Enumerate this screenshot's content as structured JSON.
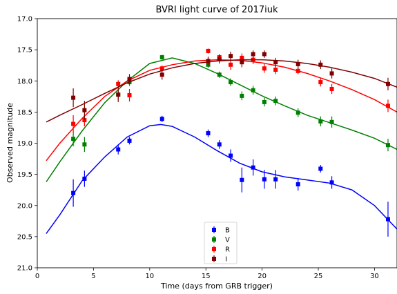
{
  "chart_data": {
    "type": "scatter",
    "title": "BVRI light curve of 2017iuk",
    "xlabel": "Time (days from GRB trigger)",
    "ylabel": "Observed magnitude",
    "xlim": [
      0,
      32
    ],
    "ylim": [
      17.0,
      21.0
    ],
    "y_inverted": true,
    "xticks": [
      "0",
      "5",
      "10",
      "15",
      "20",
      "25",
      "30"
    ],
    "yticks": [
      "17.0",
      "17.5",
      "18.0",
      "18.5",
      "19.0",
      "19.5",
      "20.0",
      "20.5",
      "21.0"
    ],
    "grid": false,
    "legend_position": "lower-center",
    "series": [
      {
        "name": "B",
        "color": "#0000ff",
        "points": [
          {
            "x": 3.2,
            "y": 19.8,
            "err": 0.22
          },
          {
            "x": 4.2,
            "y": 19.57,
            "err": 0.13
          },
          {
            "x": 7.2,
            "y": 19.1,
            "err": 0.08
          },
          {
            "x": 8.2,
            "y": 18.96,
            "err": 0.06
          },
          {
            "x": 11.1,
            "y": 18.61,
            "err": 0.05
          },
          {
            "x": 15.2,
            "y": 18.84,
            "err": 0.06
          },
          {
            "x": 16.2,
            "y": 19.02,
            "err": 0.07
          },
          {
            "x": 17.2,
            "y": 19.2,
            "err": 0.1
          },
          {
            "x": 18.2,
            "y": 19.59,
            "err": 0.2
          },
          {
            "x": 19.2,
            "y": 19.39,
            "err": 0.13
          },
          {
            "x": 20.2,
            "y": 19.58,
            "err": 0.15
          },
          {
            "x": 21.2,
            "y": 19.58,
            "err": 0.15
          },
          {
            "x": 23.2,
            "y": 19.66,
            "err": 0.1
          },
          {
            "x": 25.2,
            "y": 19.41,
            "err": 0.06
          },
          {
            "x": 26.2,
            "y": 19.63,
            "err": 0.1
          },
          {
            "x": 31.2,
            "y": 20.22,
            "err": 0.28
          }
        ],
        "curve": [
          [
            0.8,
            20.45
          ],
          [
            2,
            20.15
          ],
          [
            4,
            19.6
          ],
          [
            6,
            19.22
          ],
          [
            8,
            18.9
          ],
          [
            10,
            18.72
          ],
          [
            11,
            18.7
          ],
          [
            12,
            18.73
          ],
          [
            14,
            18.9
          ],
          [
            16,
            19.12
          ],
          [
            18,
            19.32
          ],
          [
            20,
            19.46
          ],
          [
            22,
            19.54
          ],
          [
            24,
            19.59
          ],
          [
            26,
            19.64
          ],
          [
            28,
            19.75
          ],
          [
            30,
            20.0
          ],
          [
            32,
            20.38
          ]
        ]
      },
      {
        "name": "V",
        "color": "#008000",
        "points": [
          {
            "x": 3.2,
            "y": 18.93,
            "err": 0.12
          },
          {
            "x": 4.2,
            "y": 19.02,
            "err": 0.12
          },
          {
            "x": 7.2,
            "y": 18.22,
            "err": 0.08
          },
          {
            "x": 8.2,
            "y": 18.02,
            "err": 0.06
          },
          {
            "x": 11.1,
            "y": 17.62,
            "err": 0.04
          },
          {
            "x": 15.2,
            "y": 17.74,
            "err": 0.05
          },
          {
            "x": 16.2,
            "y": 17.9,
            "err": 0.05
          },
          {
            "x": 17.2,
            "y": 18.02,
            "err": 0.06
          },
          {
            "x": 18.2,
            "y": 18.24,
            "err": 0.07
          },
          {
            "x": 19.2,
            "y": 18.15,
            "err": 0.07
          },
          {
            "x": 20.2,
            "y": 18.34,
            "err": 0.07
          },
          {
            "x": 21.2,
            "y": 18.32,
            "err": 0.07
          },
          {
            "x": 23.2,
            "y": 18.51,
            "err": 0.07
          },
          {
            "x": 25.2,
            "y": 18.65,
            "err": 0.08
          },
          {
            "x": 26.2,
            "y": 18.66,
            "err": 0.09
          },
          {
            "x": 31.2,
            "y": 19.03,
            "err": 0.1
          }
        ],
        "curve": [
          [
            0.8,
            19.62
          ],
          [
            2,
            19.3
          ],
          [
            4,
            18.8
          ],
          [
            6,
            18.35
          ],
          [
            8,
            18.0
          ],
          [
            10,
            17.72
          ],
          [
            12,
            17.63
          ],
          [
            14,
            17.72
          ],
          [
            16,
            17.88
          ],
          [
            18,
            18.06
          ],
          [
            20,
            18.24
          ],
          [
            22,
            18.4
          ],
          [
            24,
            18.55
          ],
          [
            26,
            18.67
          ],
          [
            28,
            18.79
          ],
          [
            30,
            18.92
          ],
          [
            32,
            19.1
          ]
        ]
      },
      {
        "name": "R",
        "color": "#ff0000",
        "points": [
          {
            "x": 3.2,
            "y": 18.69,
            "err": 0.14
          },
          {
            "x": 4.2,
            "y": 18.63,
            "err": 0.1
          },
          {
            "x": 7.2,
            "y": 18.05,
            "err": 0.06
          },
          {
            "x": 8.2,
            "y": 18.23,
            "err": 0.1
          },
          {
            "x": 11.1,
            "y": 17.8,
            "err": 0.05
          },
          {
            "x": 15.2,
            "y": 17.52,
            "err": 0.04
          },
          {
            "x": 16.2,
            "y": 17.62,
            "err": 0.05
          },
          {
            "x": 17.2,
            "y": 17.74,
            "err": 0.08
          },
          {
            "x": 18.2,
            "y": 17.63,
            "err": 0.07
          },
          {
            "x": 19.2,
            "y": 17.66,
            "err": 0.07
          },
          {
            "x": 20.2,
            "y": 17.8,
            "err": 0.07
          },
          {
            "x": 21.2,
            "y": 17.82,
            "err": 0.07
          },
          {
            "x": 23.2,
            "y": 17.84,
            "err": 0.05
          },
          {
            "x": 25.2,
            "y": 18.02,
            "err": 0.07
          },
          {
            "x": 26.2,
            "y": 18.13,
            "err": 0.08
          },
          {
            "x": 31.2,
            "y": 18.4,
            "err": 0.1
          }
        ],
        "curve": [
          [
            0.8,
            19.28
          ],
          [
            2,
            19.0
          ],
          [
            4,
            18.6
          ],
          [
            6,
            18.25
          ],
          [
            8,
            18.0
          ],
          [
            10,
            17.83
          ],
          [
            12,
            17.74
          ],
          [
            14,
            17.68
          ],
          [
            16,
            17.66
          ],
          [
            18,
            17.67
          ],
          [
            20,
            17.71
          ],
          [
            22,
            17.78
          ],
          [
            24,
            17.88
          ],
          [
            26,
            18.0
          ],
          [
            28,
            18.14
          ],
          [
            30,
            18.3
          ],
          [
            32,
            18.5
          ]
        ]
      },
      {
        "name": "I",
        "color": "#800000",
        "points": [
          {
            "x": 3.2,
            "y": 18.27,
            "err": 0.15
          },
          {
            "x": 4.2,
            "y": 18.47,
            "err": 0.15
          },
          {
            "x": 7.2,
            "y": 18.22,
            "err": 0.12
          },
          {
            "x": 8.2,
            "y": 17.97,
            "err": 0.08
          },
          {
            "x": 11.1,
            "y": 17.9,
            "err": 0.08
          },
          {
            "x": 15.2,
            "y": 17.68,
            "err": 0.07
          },
          {
            "x": 16.2,
            "y": 17.65,
            "err": 0.07
          },
          {
            "x": 17.2,
            "y": 17.6,
            "err": 0.07
          },
          {
            "x": 18.2,
            "y": 17.7,
            "err": 0.08
          },
          {
            "x": 19.2,
            "y": 17.57,
            "err": 0.06
          },
          {
            "x": 20.2,
            "y": 17.57,
            "err": 0.06
          },
          {
            "x": 21.2,
            "y": 17.7,
            "err": 0.07
          },
          {
            "x": 23.2,
            "y": 17.73,
            "err": 0.07
          },
          {
            "x": 25.2,
            "y": 17.74,
            "err": 0.07
          },
          {
            "x": 26.2,
            "y": 17.88,
            "err": 0.08
          },
          {
            "x": 31.2,
            "y": 18.05,
            "err": 0.1
          }
        ],
        "curve": [
          [
            0.8,
            18.66
          ],
          [
            2,
            18.55
          ],
          [
            4,
            18.38
          ],
          [
            6,
            18.2
          ],
          [
            8,
            18.03
          ],
          [
            10,
            17.89
          ],
          [
            12,
            17.79
          ],
          [
            14,
            17.72
          ],
          [
            16,
            17.68
          ],
          [
            18,
            17.66
          ],
          [
            20,
            17.66
          ],
          [
            22,
            17.68
          ],
          [
            24,
            17.72
          ],
          [
            26,
            17.78
          ],
          [
            28,
            17.86
          ],
          [
            30,
            17.96
          ],
          [
            32,
            18.1
          ]
        ]
      }
    ]
  }
}
